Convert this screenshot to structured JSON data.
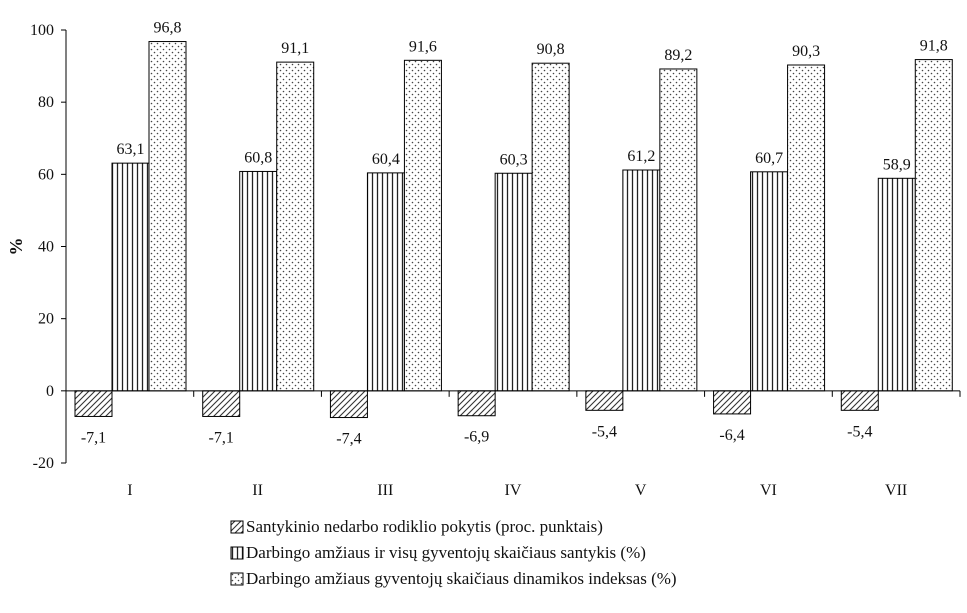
{
  "chart_data": {
    "type": "bar",
    "title": "",
    "xlabel": "",
    "ylabel": "%",
    "ylim": [
      -20,
      100
    ],
    "yticks": [
      -20,
      0,
      20,
      40,
      60,
      80,
      100
    ],
    "grid": false,
    "legend_position": "bottom",
    "categories": [
      "I",
      "II",
      "III",
      "IV",
      "V",
      "VI",
      "VII"
    ],
    "series": [
      {
        "name": "Santykinio nedarbo rodiklio pokytis (proc. punktais)",
        "pattern": "diagonal-hatch",
        "values": [
          -7.1,
          -7.1,
          -7.4,
          -6.9,
          -5.4,
          -6.4,
          -5.4
        ],
        "labels": [
          "-7,1",
          "-7,1",
          "-7,4",
          "-6,9",
          "-5,4",
          "-6,4",
          "-5,4"
        ]
      },
      {
        "name": "Darbingo amžiaus ir visų gyventojų skaičiaus santykis (%)",
        "pattern": "vertical-stripes",
        "values": [
          63.1,
          60.8,
          60.4,
          60.3,
          61.2,
          60.7,
          58.9
        ],
        "labels": [
          "63,1",
          "60,8",
          "60,4",
          "60,3",
          "61,2",
          "60,7",
          "58,9"
        ]
      },
      {
        "name": "Darbingo amžiaus gyventojų skaičiaus dinamikos indeksas (%)",
        "pattern": "dots",
        "values": [
          96.8,
          91.1,
          91.6,
          90.8,
          89.2,
          90.3,
          91.8
        ],
        "labels": [
          "96,8",
          "91,1",
          "91,6",
          "90,8",
          "89,2",
          "90,3",
          "91,8"
        ]
      }
    ]
  }
}
